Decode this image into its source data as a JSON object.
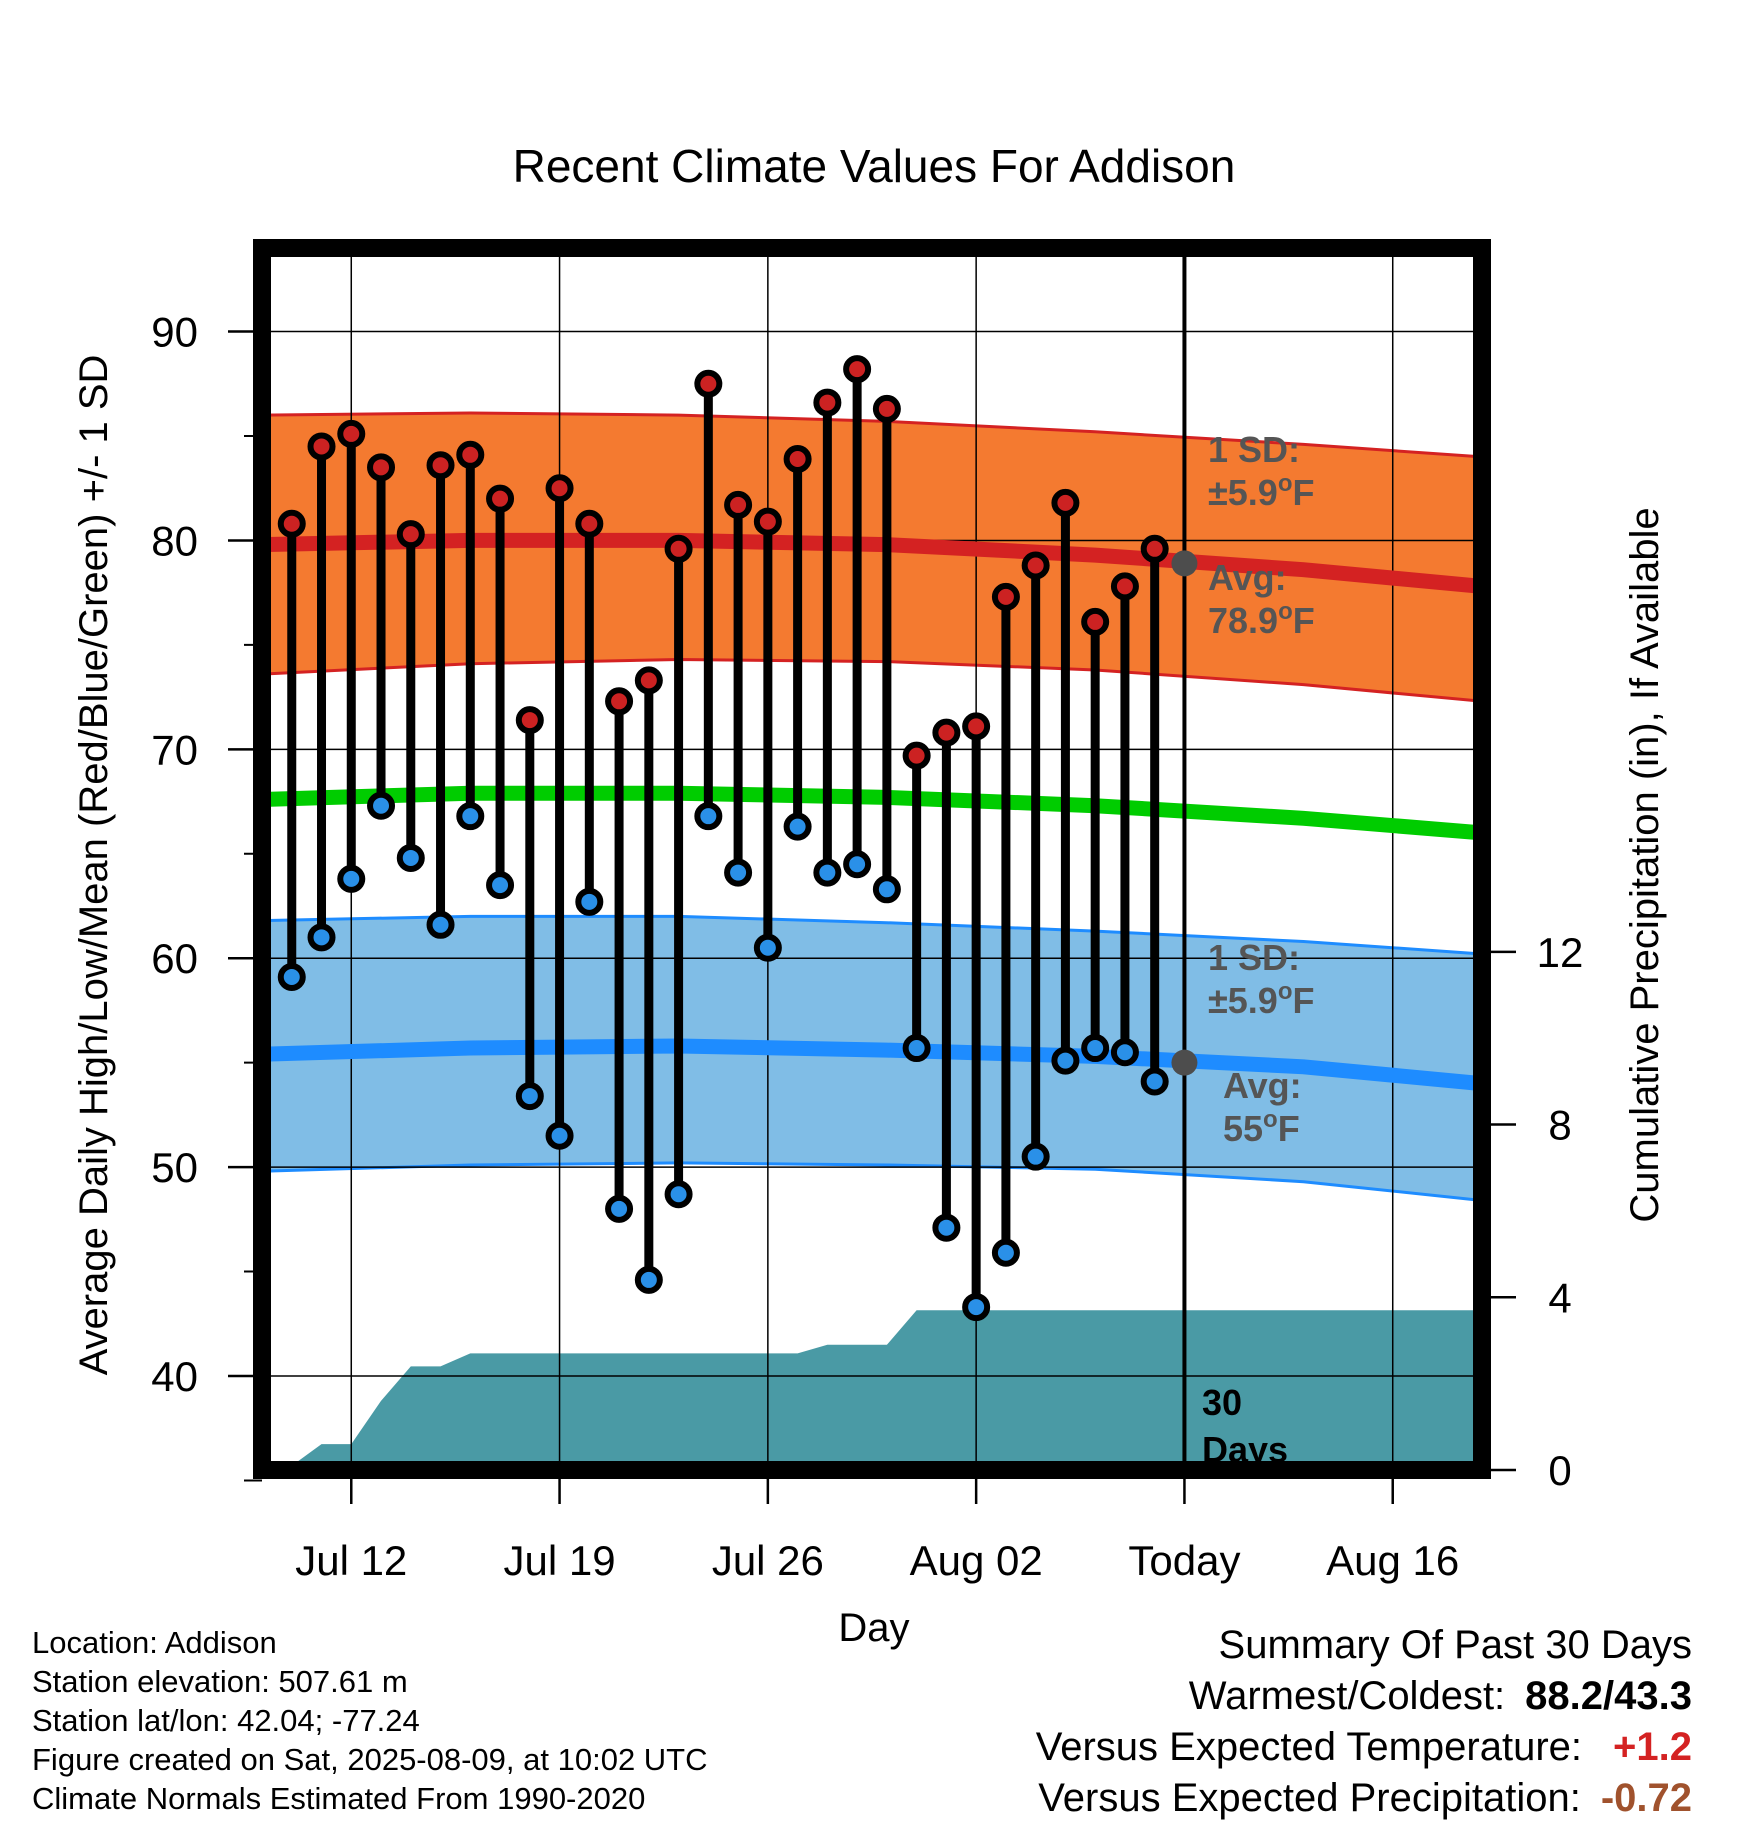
{
  "chart_data": {
    "type": "line",
    "title": "Recent Climate Values For Addison",
    "xlabel": "Day",
    "ylabel": "Average Daily High/Low/Mean (Red/Blue/Green) +/- 1 SD",
    "y2label": "Cumulative Precipitation (in), If Available",
    "x_tick_labels": [
      "Jul 12",
      "Jul 19",
      "Jul 26",
      "Aug 02",
      "Today",
      "Aug 16"
    ],
    "y_ticks": [
      40,
      50,
      60,
      70,
      80,
      90
    ],
    "y2_ticks": [
      0,
      4,
      8,
      12
    ],
    "ylim": [
      35.5,
      94
    ],
    "y2lim": [
      0,
      28.3
    ],
    "xlim": [
      "2025-07-09",
      "2025-08-19"
    ],
    "today": "2025-08-09",
    "grid": true,
    "daily": {
      "dates": [
        "2025-07-10",
        "2025-07-11",
        "2025-07-12",
        "2025-07-13",
        "2025-07-14",
        "2025-07-15",
        "2025-07-16",
        "2025-07-17",
        "2025-07-18",
        "2025-07-19",
        "2025-07-20",
        "2025-07-21",
        "2025-07-22",
        "2025-07-23",
        "2025-07-24",
        "2025-07-25",
        "2025-07-26",
        "2025-07-27",
        "2025-07-28",
        "2025-07-29",
        "2025-07-30",
        "2025-07-31",
        "2025-08-01",
        "2025-08-02",
        "2025-08-03",
        "2025-08-04",
        "2025-08-05",
        "2025-08-06",
        "2025-08-07",
        "2025-08-08"
      ],
      "high": [
        80.8,
        84.5,
        85.1,
        83.5,
        80.3,
        83.6,
        84.1,
        82.0,
        71.4,
        82.5,
        80.8,
        72.3,
        73.3,
        79.6,
        87.5,
        81.7,
        80.9,
        83.9,
        86.6,
        88.2,
        86.3,
        69.7,
        70.8,
        71.1,
        77.3,
        78.8,
        81.8,
        76.1,
        77.8,
        79.6
      ],
      "low": [
        59.1,
        61.0,
        63.8,
        67.3,
        64.8,
        61.6,
        66.8,
        63.5,
        53.4,
        51.5,
        62.7,
        48.0,
        44.6,
        48.7,
        66.8,
        64.1,
        60.5,
        66.3,
        64.1,
        64.5,
        63.3,
        55.7,
        47.1,
        43.3,
        45.9,
        50.5,
        55.1,
        55.7,
        55.5,
        54.1
      ]
    },
    "normals": {
      "dates": [
        "2025-07-09",
        "2025-07-16",
        "2025-07-23",
        "2025-07-30",
        "2025-08-06",
        "2025-08-13",
        "2025-08-19"
      ],
      "high_avg": [
        79.8,
        80.0,
        80.0,
        79.8,
        79.3,
        78.6,
        77.8
      ],
      "high_upper": [
        86.0,
        86.1,
        86.0,
        85.7,
        85.2,
        84.6,
        84.0
      ],
      "high_lower": [
        73.6,
        74.1,
        74.3,
        74.2,
        73.8,
        73.1,
        72.3
      ],
      "mean_avg": [
        67.6,
        67.9,
        67.9,
        67.7,
        67.3,
        66.7,
        66.0
      ],
      "low_avg": [
        55.4,
        55.7,
        55.8,
        55.6,
        55.3,
        54.8,
        54.0
      ],
      "low_upper": [
        61.8,
        62.0,
        62.0,
        61.7,
        61.3,
        60.8,
        60.2
      ],
      "low_lower": [
        49.8,
        50.1,
        50.2,
        50.1,
        49.9,
        49.3,
        48.4
      ]
    },
    "today_markers": {
      "high_avg": 78.9,
      "low_avg": 55.0
    },
    "precip": {
      "dates": [
        "2025-07-09",
        "2025-07-10",
        "2025-07-11",
        "2025-07-12",
        "2025-07-13",
        "2025-07-14",
        "2025-07-15",
        "2025-07-16",
        "2025-07-17",
        "2025-07-27",
        "2025-07-28",
        "2025-07-30",
        "2025-07-31",
        "2025-08-19"
      ],
      "cumulative": [
        0.0,
        0.1,
        0.6,
        0.6,
        1.6,
        2.4,
        2.4,
        2.7,
        2.7,
        2.7,
        2.9,
        2.9,
        3.7,
        3.7
      ]
    },
    "annotations": {
      "high_sd_label": "1 SD:",
      "high_sd_value": "±5.9",
      "high_avg_label": "Avg:",
      "high_avg_value": "78.9",
      "low_sd_label": "1 SD:",
      "low_sd_value": "±5.9",
      "low_avg_label": "Avg:",
      "low_avg_value": "55",
      "degree_unit": "o",
      "unit_letter": "F",
      "days_number": "30",
      "days_word": "Days"
    },
    "colors": {
      "high_band": "#f47a30",
      "high_line": "#d42222",
      "mean_line": "#00cc00",
      "low_band": "#80bde6",
      "low_line": "#1e8cff",
      "precip_fill": "#4a9aa5",
      "high_dot": "#cc2222",
      "low_dot": "#2a90e8",
      "today_dot": "#4d4d4d"
    }
  },
  "footer": {
    "location": "Location: Addison",
    "elevation": "Station elevation: 507.61 m",
    "latlon": "Station lat/lon: 42.04; -77.24",
    "created": "Figure created on Sat, 2025-08-09, at 10:02 UTC",
    "normals": "Climate Normals Estimated From 1990-2020"
  },
  "summary": {
    "heading": "Summary Of Past 30 Days",
    "warm_cold_label": "Warmest/Coldest:",
    "warm_cold_value": "88.2/43.3",
    "temp_label": "Versus Expected Temperature:",
    "temp_value": "+1.2",
    "temp_color": "#d42222",
    "precip_label": "Versus Expected Precipitation:",
    "precip_value": "-0.72",
    "precip_color": "#a0522d"
  }
}
